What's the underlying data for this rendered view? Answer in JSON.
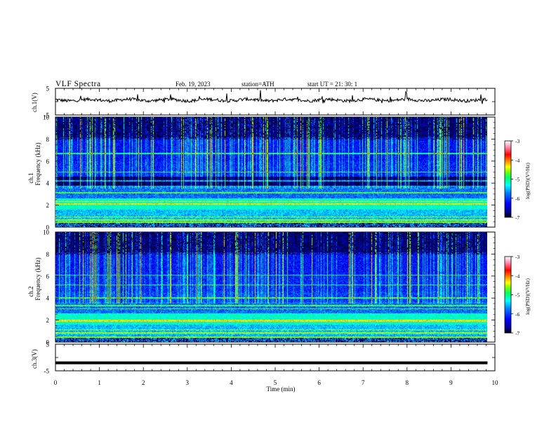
{
  "header": {
    "title": "VLF  Spectra",
    "date": "Feb. 19, 2023",
    "station": "station=ATH",
    "start": "start  UT  =   21: 30: 1"
  },
  "chart_data": [
    {
      "type": "line",
      "ylabel": "ch.1(V)",
      "ylim": [
        -5,
        5
      ],
      "yticks": [
        "5",
        "-5"
      ],
      "xlim": [
        0,
        10
      ],
      "description_series": "ch.1 waveform, baseline slightly above 0 V with spikes"
    },
    {
      "type": "heatmap",
      "ylabel": "ch.1\nFrequency (kHz)",
      "ylabel_lines": [
        "ch.1",
        "Frequency (kHz)"
      ],
      "ylim": [
        0,
        10
      ],
      "yticks": [
        "0",
        "2",
        "4",
        "6",
        "8",
        "10"
      ],
      "xlim": [
        0,
        9.83
      ],
      "colorbar": {
        "label": "log(PSD)(V²/Hz)",
        "ticks": [
          "-3",
          "-4",
          "-5",
          "-6",
          "-7"
        ],
        "range": [
          -7,
          -3
        ]
      }
    },
    {
      "type": "heatmap",
      "ylabel_lines": [
        "ch.2",
        "Frequency (kHz)"
      ],
      "ylim": [
        0,
        10
      ],
      "yticks": [
        "0",
        "2",
        "4",
        "6",
        "8",
        "10"
      ],
      "xlim": [
        0,
        9.83
      ],
      "colorbar": {
        "label": "log(PSD)(V²/Hz)",
        "ticks": [
          "-3",
          "-4",
          "-5",
          "-6",
          "-7"
        ],
        "range": [
          -7,
          -3
        ]
      }
    },
    {
      "type": "line",
      "ylabel": "ch.3(V)",
      "ylim": [
        -5,
        5
      ],
      "yticks": [
        "5",
        "-5"
      ],
      "xlim": [
        0,
        10
      ],
      "value_constant": -2
    }
  ],
  "xaxis": {
    "label": "Time  (min)",
    "ticks": [
      "0",
      "1",
      "2",
      "3",
      "4",
      "5",
      "6",
      "7",
      "8",
      "9",
      "10"
    ],
    "range": [
      0,
      10
    ]
  },
  "colors": {
    "colormap": [
      "#000000",
      "#0000a0",
      "#0000ff",
      "#0080ff",
      "#00ffff",
      "#00ff80",
      "#80ff00",
      "#ffff00",
      "#ff8000",
      "#ff0000",
      "#ff80a0",
      "#ffffff"
    ]
  }
}
